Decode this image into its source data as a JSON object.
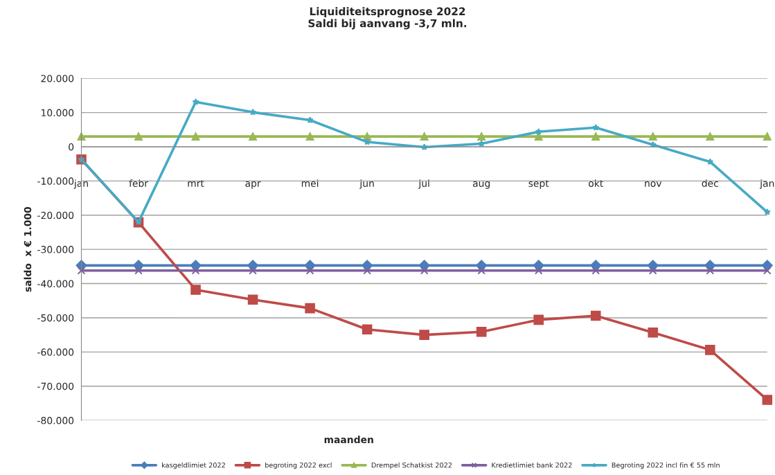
{
  "chart_data": {
    "type": "line",
    "title": "Liquiditeitsprognose 2022\nSaldi bij aanvang -3,7 mln.",
    "xlabel": "maanden",
    "ylabel": "saldo  x € 1.000",
    "categories": [
      "jan",
      "febr",
      "mrt",
      "apr",
      "mei",
      "jun",
      "jul",
      "aug",
      "sept",
      "okt",
      "nov",
      "dec",
      "jan"
    ],
    "series": [
      {
        "name": "kasgeldlimiet 2022",
        "color": "#4a7ebb",
        "marker": "diamond",
        "values": [
          -34700,
          -34700,
          -34700,
          -34700,
          -34700,
          -34700,
          -34700,
          -34700,
          -34700,
          -34700,
          -34700,
          -34700,
          -34700
        ]
      },
      {
        "name": "begroting 2022 excl",
        "color": "#be4b48",
        "marker": "square",
        "values": [
          -3700,
          -22100,
          -41800,
          -44700,
          -47200,
          -53400,
          -55000,
          -54100,
          -50600,
          -49400,
          -54300,
          -59400,
          -74000
        ]
      },
      {
        "name": "Drempel Schatkist 2022",
        "color": "#98b954",
        "marker": "triangle",
        "values": [
          3000,
          3000,
          3000,
          3000,
          3000,
          3000,
          3000,
          3000,
          3000,
          3000,
          3000,
          3000,
          3000
        ]
      },
      {
        "name": "Kredietlimiet bank 2022",
        "color": "#7d60a0",
        "marker": "cross",
        "values": [
          -36200,
          -36200,
          -36200,
          -36200,
          -36200,
          -36200,
          -36200,
          -36200,
          -36200,
          -36200,
          -36200,
          -36200,
          -36200
        ]
      },
      {
        "name": "Begroting 2022 incl fin € 55 mln",
        "color": "#46aac5",
        "marker": "star",
        "values": [
          -3700,
          -22000,
          13100,
          10100,
          7800,
          1400,
          -100,
          900,
          4400,
          5600,
          600,
          -4400,
          -19100
        ]
      }
    ],
    "ylim": [
      -80000,
      20000
    ],
    "yticks": [
      {
        "value": -80000,
        "label": "-80.000"
      },
      {
        "value": -70000,
        "label": "-70.000"
      },
      {
        "value": -60000,
        "label": "-60.000"
      },
      {
        "value": -50000,
        "label": "-50.000"
      },
      {
        "value": -40000,
        "label": "-40.000"
      },
      {
        "value": -30000,
        "label": "-30.000"
      },
      {
        "value": -20000,
        "label": "-20.000"
      },
      {
        "value": -10000,
        "label": "-10.000"
      },
      0,
      {
        "value": 10000,
        "label": "10.000"
      },
      {
        "value": 20000,
        "label": "20.000"
      }
    ],
    "grid": "y",
    "legend": "bottom",
    "line_style": "solid"
  }
}
